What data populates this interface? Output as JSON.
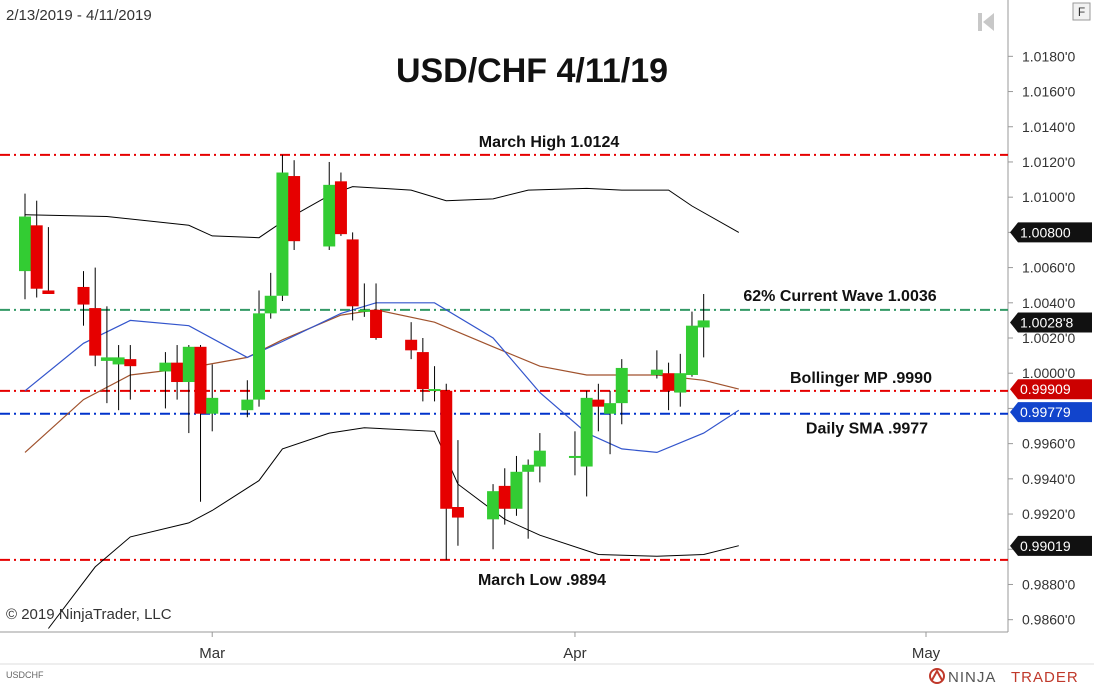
{
  "header": {
    "date_range": "2/13/2019 - 4/11/2019",
    "f_button": "F"
  },
  "footer": {
    "copyright": "© 2019 NinjaTrader, LLC",
    "symbol": "USDCHF",
    "brand_ninja": "NINJA",
    "brand_trader": "TRADER"
  },
  "colors": {
    "up": "#33cc33",
    "down": "#e60000",
    "level_line": "#e60000",
    "current_wave_line": "#339966",
    "sma_line": "#0033cc",
    "bollinger_band": "#000000",
    "bollinger_mid": "#a0522d",
    "sma_curve": "#3355cc",
    "badge_black": "#111111",
    "badge_red": "#cc0000",
    "badge_blue": "#1144cc"
  },
  "icons": [
    "skip-back-icon",
    "ninjatrader-logo-icon"
  ],
  "chart_data": {
    "type": "candlestick",
    "title": "USD/CHF 4/11/19",
    "ylim": [
      0.9853,
      1.0212
    ],
    "y_ticks": [
      "1.0180'0",
      "1.0160'0",
      "1.0140'0",
      "1.0120'0",
      "1.0100'0",
      "1.0080'0",
      "1.0060'0",
      "1.0040'0",
      "1.0020'0",
      "1.0000'0",
      "0.9980'0",
      "0.9960'0",
      "0.9940'0",
      "0.9920'0",
      "0.9900'0",
      "0.9880'0",
      "0.9860'0"
    ],
    "y_tick_values": [
      1.018,
      1.016,
      1.014,
      1.012,
      1.01,
      1.008,
      1.006,
      1.004,
      1.002,
      1.0,
      0.998,
      0.996,
      0.994,
      0.992,
      0.99,
      0.988,
      0.986
    ],
    "x_ticks": [
      {
        "label": "Mar",
        "date": "2019-03-01"
      },
      {
        "label": "Apr",
        "date": "2019-04-01"
      },
      {
        "label": "May",
        "date": "2019-05-01"
      }
    ],
    "candles": [
      {
        "date": "2019-02-13",
        "open": 1.0058,
        "high": 1.0102,
        "low": 1.0042,
        "close": 1.0089
      },
      {
        "date": "2019-02-14",
        "open": 1.0084,
        "high": 1.0098,
        "low": 1.0043,
        "close": 1.0048
      },
      {
        "date": "2019-02-15",
        "open": 1.0047,
        "high": 1.0083,
        "low": 1.0046,
        "close": 1.0045
      },
      {
        "date": "2019-02-18",
        "open": 1.0049,
        "high": 1.0058,
        "low": 1.0027,
        "close": 1.0039
      },
      {
        "date": "2019-02-19",
        "open": 1.0037,
        "high": 1.006,
        "low": 1.0004,
        "close": 1.001
      },
      {
        "date": "2019-02-20",
        "open": 1.0007,
        "high": 1.0038,
        "low": 0.9983,
        "close": 1.0009
      },
      {
        "date": "2019-02-21",
        "open": 1.0005,
        "high": 1.0016,
        "low": 0.9979,
        "close": 1.0009
      },
      {
        "date": "2019-02-22",
        "open": 1.0008,
        "high": 1.0016,
        "low": 0.9985,
        "close": 1.0004
      },
      {
        "date": "2019-02-25",
        "open": 1.0001,
        "high": 1.0012,
        "low": 0.998,
        "close": 1.0006
      },
      {
        "date": "2019-02-26",
        "open": 1.0006,
        "high": 1.0016,
        "low": 0.9985,
        "close": 0.9995
      },
      {
        "date": "2019-02-27",
        "open": 0.9995,
        "high": 1.0016,
        "low": 0.9966,
        "close": 1.0015
      },
      {
        "date": "2019-02-28",
        "open": 1.0015,
        "high": 1.0016,
        "low": 0.9927,
        "close": 0.9977
      },
      {
        "date": "2019-03-01",
        "open": 0.9977,
        "high": 1.0005,
        "low": 0.9967,
        "close": 0.9986
      },
      {
        "date": "2019-03-04",
        "open": 0.9979,
        "high": 0.9996,
        "low": 0.9975,
        "close": 0.9985
      },
      {
        "date": "2019-03-05",
        "open": 0.9985,
        "high": 1.0047,
        "low": 0.9981,
        "close": 1.0034
      },
      {
        "date": "2019-03-06",
        "open": 1.0034,
        "high": 1.0057,
        "low": 1.0031,
        "close": 1.0044
      },
      {
        "date": "2019-03-07",
        "open": 1.0044,
        "high": 1.0124,
        "low": 1.0041,
        "close": 1.0114
      },
      {
        "date": "2019-03-08",
        "open": 1.0112,
        "high": 1.0121,
        "low": 1.007,
        "close": 1.0075
      },
      {
        "date": "2019-03-11",
        "open": 1.0072,
        "high": 1.012,
        "low": 1.007,
        "close": 1.0107
      },
      {
        "date": "2019-03-12",
        "open": 1.0109,
        "high": 1.0114,
        "low": 1.0078,
        "close": 1.0079
      },
      {
        "date": "2019-03-13",
        "open": 1.0076,
        "high": 1.008,
        "low": 1.003,
        "close": 1.0038
      },
      {
        "date": "2019-03-14",
        "open": 1.0036,
        "high": 1.0051,
        "low": 1.0032,
        "close": 1.0036
      },
      {
        "date": "2019-03-15",
        "open": 1.0036,
        "high": 1.0051,
        "low": 1.0019,
        "close": 1.002
      },
      {
        "date": "2019-03-18",
        "open": 1.0019,
        "high": 1.0029,
        "low": 1.0008,
        "close": 1.0013
      },
      {
        "date": "2019-03-19",
        "open": 1.0012,
        "high": 1.002,
        "low": 0.9984,
        "close": 0.9991
      },
      {
        "date": "2019-03-20",
        "open": 0.9991,
        "high": 1.0004,
        "low": 0.9984,
        "close": 0.9991
      },
      {
        "date": "2019-03-21",
        "open": 0.999,
        "high": 0.9994,
        "low": 0.9894,
        "close": 0.9923
      },
      {
        "date": "2019-03-22",
        "open": 0.9924,
        "high": 0.9962,
        "low": 0.9902,
        "close": 0.9918
      },
      {
        "date": "2019-03-25",
        "open": 0.9917,
        "high": 0.9937,
        "low": 0.99,
        "close": 0.9933
      },
      {
        "date": "2019-03-26",
        "open": 0.9936,
        "high": 0.9946,
        "low": 0.9914,
        "close": 0.9923
      },
      {
        "date": "2019-03-27",
        "open": 0.9923,
        "high": 0.9953,
        "low": 0.9919,
        "close": 0.9944
      },
      {
        "date": "2019-03-28",
        "open": 0.9944,
        "high": 0.9951,
        "low": 0.9906,
        "close": 0.9948
      },
      {
        "date": "2019-03-29",
        "open": 0.9947,
        "high": 0.9966,
        "low": 0.9938,
        "close": 0.9956
      },
      {
        "date": "2019-04-01",
        "open": 0.9953,
        "high": 0.9967,
        "low": 0.9942,
        "close": 0.9953
      },
      {
        "date": "2019-04-02",
        "open": 0.9947,
        "high": 0.999,
        "low": 0.993,
        "close": 0.9986
      },
      {
        "date": "2019-04-03",
        "open": 0.9985,
        "high": 0.9994,
        "low": 0.9967,
        "close": 0.9981
      },
      {
        "date": "2019-04-04",
        "open": 0.9977,
        "high": 0.999,
        "low": 0.9954,
        "close": 0.9983
      },
      {
        "date": "2019-04-05",
        "open": 0.9983,
        "high": 1.0008,
        "low": 0.9971,
        "close": 1.0003
      },
      {
        "date": "2019-04-08",
        "open": 0.9999,
        "high": 1.0013,
        "low": 0.9997,
        "close": 1.0002
      },
      {
        "date": "2019-04-09",
        "open": 1.0,
        "high": 1.0006,
        "low": 0.9979,
        "close": 0.999
      },
      {
        "date": "2019-04-10",
        "open": 0.9989,
        "high": 1.0011,
        "low": 0.9981,
        "close": 1.0
      },
      {
        "date": "2019-04-11",
        "open": 0.9999,
        "high": 1.0035,
        "low": 0.9998,
        "close": 1.0027
      },
      {
        "date": "2019-04-12",
        "open": 1.0026,
        "high": 1.0045,
        "low": 1.0009,
        "close": 1.003
      }
    ],
    "bollinger_upper": [
      {
        "date": "2019-02-13",
        "value": 1.009
      },
      {
        "date": "2019-02-20",
        "value": 1.0089
      },
      {
        "date": "2019-02-27",
        "value": 1.0084
      },
      {
        "date": "2019-03-01",
        "value": 1.0078
      },
      {
        "date": "2019-03-05",
        "value": 1.0077
      },
      {
        "date": "2019-03-07",
        "value": 1.0086
      },
      {
        "date": "2019-03-11",
        "value": 1.0101
      },
      {
        "date": "2019-03-13",
        "value": 1.0106
      },
      {
        "date": "2019-03-18",
        "value": 1.0104
      },
      {
        "date": "2019-03-21",
        "value": 1.0098
      },
      {
        "date": "2019-03-25",
        "value": 1.0099
      },
      {
        "date": "2019-03-28",
        "value": 1.0104
      },
      {
        "date": "2019-04-02",
        "value": 1.0105
      },
      {
        "date": "2019-04-05",
        "value": 1.0104
      },
      {
        "date": "2019-04-09",
        "value": 1.0104
      },
      {
        "date": "2019-04-11",
        "value": 1.0095
      },
      {
        "date": "2019-04-15",
        "value": 1.008
      }
    ],
    "bollinger_lower": [
      {
        "date": "2019-02-15",
        "value": 0.9855
      },
      {
        "date": "2019-02-19",
        "value": 0.989
      },
      {
        "date": "2019-02-22",
        "value": 0.9907
      },
      {
        "date": "2019-02-27",
        "value": 0.9915
      },
      {
        "date": "2019-03-01",
        "value": 0.9922
      },
      {
        "date": "2019-03-05",
        "value": 0.9939
      },
      {
        "date": "2019-03-07",
        "value": 0.9957
      },
      {
        "date": "2019-03-11",
        "value": 0.9966
      },
      {
        "date": "2019-03-14",
        "value": 0.9969
      },
      {
        "date": "2019-03-20",
        "value": 0.9967
      },
      {
        "date": "2019-03-22",
        "value": 0.9937
      },
      {
        "date": "2019-03-26",
        "value": 0.9917
      },
      {
        "date": "2019-03-29",
        "value": 0.9908
      },
      {
        "date": "2019-04-03",
        "value": 0.9897
      },
      {
        "date": "2019-04-08",
        "value": 0.9896
      },
      {
        "date": "2019-04-12",
        "value": 0.9897
      },
      {
        "date": "2019-04-15",
        "value": 0.9902
      }
    ],
    "bollinger_mid": [
      {
        "date": "2019-02-13",
        "value": 0.9955
      },
      {
        "date": "2019-02-18",
        "value": 0.9985
      },
      {
        "date": "2019-02-22",
        "value": 0.9999
      },
      {
        "date": "2019-02-27",
        "value": 1.0003
      },
      {
        "date": "2019-03-04",
        "value": 1.0009
      },
      {
        "date": "2019-03-07",
        "value": 1.0019
      },
      {
        "date": "2019-03-12",
        "value": 1.0033
      },
      {
        "date": "2019-03-15",
        "value": 1.0036
      },
      {
        "date": "2019-03-20",
        "value": 1.0029
      },
      {
        "date": "2019-03-25",
        "value": 1.0015
      },
      {
        "date": "2019-03-29",
        "value": 1.0004
      },
      {
        "date": "2019-04-02",
        "value": 0.9999
      },
      {
        "date": "2019-04-08",
        "value": 0.9999
      },
      {
        "date": "2019-04-12",
        "value": 0.9996
      },
      {
        "date": "2019-04-15",
        "value": 0.9991
      }
    ],
    "daily_sma": [
      {
        "date": "2019-02-13",
        "value": 0.999
      },
      {
        "date": "2019-02-18",
        "value": 1.0017
      },
      {
        "date": "2019-02-22",
        "value": 1.003
      },
      {
        "date": "2019-02-27",
        "value": 1.0027
      },
      {
        "date": "2019-03-04",
        "value": 1.0009
      },
      {
        "date": "2019-03-07",
        "value": 1.0018
      },
      {
        "date": "2019-03-12",
        "value": 1.0034
      },
      {
        "date": "2019-03-15",
        "value": 1.004
      },
      {
        "date": "2019-03-20",
        "value": 1.004
      },
      {
        "date": "2019-03-25",
        "value": 1.002
      },
      {
        "date": "2019-03-29",
        "value": 0.9989
      },
      {
        "date": "2019-04-02",
        "value": 0.9966
      },
      {
        "date": "2019-04-05",
        "value": 0.9957
      },
      {
        "date": "2019-04-08",
        "value": 0.9955
      },
      {
        "date": "2019-04-12",
        "value": 0.9966
      },
      {
        "date": "2019-04-15",
        "value": 0.9979
      }
    ],
    "levels": [
      {
        "label": "March High 1.0124",
        "value": 1.0124,
        "style": "red-dashdot"
      },
      {
        "label": "62% Current Wave 1.0036",
        "value": 1.0036,
        "style": "green-dashdot"
      },
      {
        "label": "Bollinger MP .9990",
        "value": 0.999,
        "style": "red-dashdot"
      },
      {
        "label": "Daily SMA .9977",
        "value": 0.9977,
        "style": "blue-dashdot"
      },
      {
        "label": "March Low .9894",
        "value": 0.9894,
        "style": "red-dashdot"
      }
    ],
    "price_badges": [
      {
        "text": "1.00800",
        "value": 1.008,
        "color": "black"
      },
      {
        "text": "1.0028'8",
        "value": 1.00288,
        "color": "black"
      },
      {
        "text": "0.99909",
        "value": 0.99909,
        "color": "red"
      },
      {
        "text": "0.99779",
        "value": 0.99779,
        "color": "blue"
      },
      {
        "text": "0.99019",
        "value": 0.99019,
        "color": "black"
      }
    ],
    "grid": false
  }
}
